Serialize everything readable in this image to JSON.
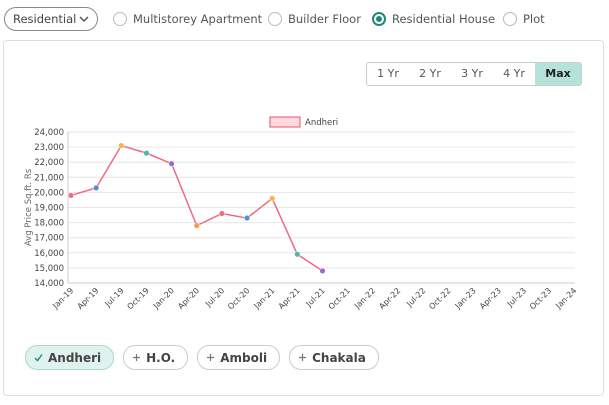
{
  "property_filter": {
    "dropdown": "Residential",
    "options": [
      {
        "label": "Multistorey Apartment",
        "selected": false
      },
      {
        "label": "Builder Floor",
        "selected": false
      },
      {
        "label": "Residential House",
        "selected": true
      },
      {
        "label": "Plot",
        "selected": false
      }
    ]
  },
  "range_buttons": [
    {
      "label": "1 Yr",
      "selected": false
    },
    {
      "label": "2 Yr",
      "selected": false
    },
    {
      "label": "3 Yr",
      "selected": false
    },
    {
      "label": "4 Yr",
      "selected": false
    },
    {
      "label": "Max",
      "selected": true
    }
  ],
  "chart_data": {
    "type": "line",
    "y_label": "Avg Price Sq.ft. Rs",
    "categories": [
      "Jan-19",
      "Apr-19",
      "Jul-19",
      "Oct-19",
      "Jan-20",
      "Apr-20",
      "Jul-20",
      "Oct-20",
      "Jan-21",
      "Apr-21",
      "Jul-21",
      "Oct-21",
      "Jan-22",
      "Apr-22",
      "Jul-22",
      "Oct-22",
      "Jan-23",
      "Apr-23",
      "Jul-23",
      "Oct-23",
      "Jan-24"
    ],
    "series": [
      {
        "name": "Andheri",
        "color": "#f06a86",
        "values": [
          19800,
          20300,
          23100,
          22600,
          21900,
          17800,
          18600,
          18300,
          19600,
          15900,
          14800,
          null,
          null,
          null,
          null,
          null,
          null,
          null,
          null,
          null,
          null
        ],
        "point_colors": [
          "#ee6b7d",
          "#4a8fd8",
          "#f5b447",
          "#4db6ac",
          "#9a6ad6",
          "#f39c4f",
          "#ee6b7d",
          "#4a8fd8",
          "#f5b447",
          "#4db6ac",
          "#9a6ad6",
          null,
          null,
          null,
          null,
          null,
          null,
          null,
          null,
          null,
          null
        ]
      }
    ],
    "ylim": [
      14000,
      24000
    ],
    "yticks": [
      {
        "value": 14000,
        "label": "14,000"
      },
      {
        "value": 15000,
        "label": "15,000"
      },
      {
        "value": 16000,
        "label": "16,000"
      },
      {
        "value": 17000,
        "label": "17,000"
      },
      {
        "value": 18000,
        "label": "18,000"
      },
      {
        "value": 19000,
        "label": "19,000"
      },
      {
        "value": 20000,
        "label": "20,000"
      },
      {
        "value": 21000,
        "label": "21,000"
      },
      {
        "value": 22000,
        "label": "22,000"
      },
      {
        "value": 23000,
        "label": "23,000"
      },
      {
        "value": 24000,
        "label": "24,000"
      }
    ],
    "grid": true,
    "legend": "top"
  },
  "area_chips": [
    {
      "label": "Andheri",
      "selected": true
    },
    {
      "label": "H.O.",
      "selected": false
    },
    {
      "label": "Amboli",
      "selected": false
    },
    {
      "label": "Chakala",
      "selected": false
    }
  ]
}
